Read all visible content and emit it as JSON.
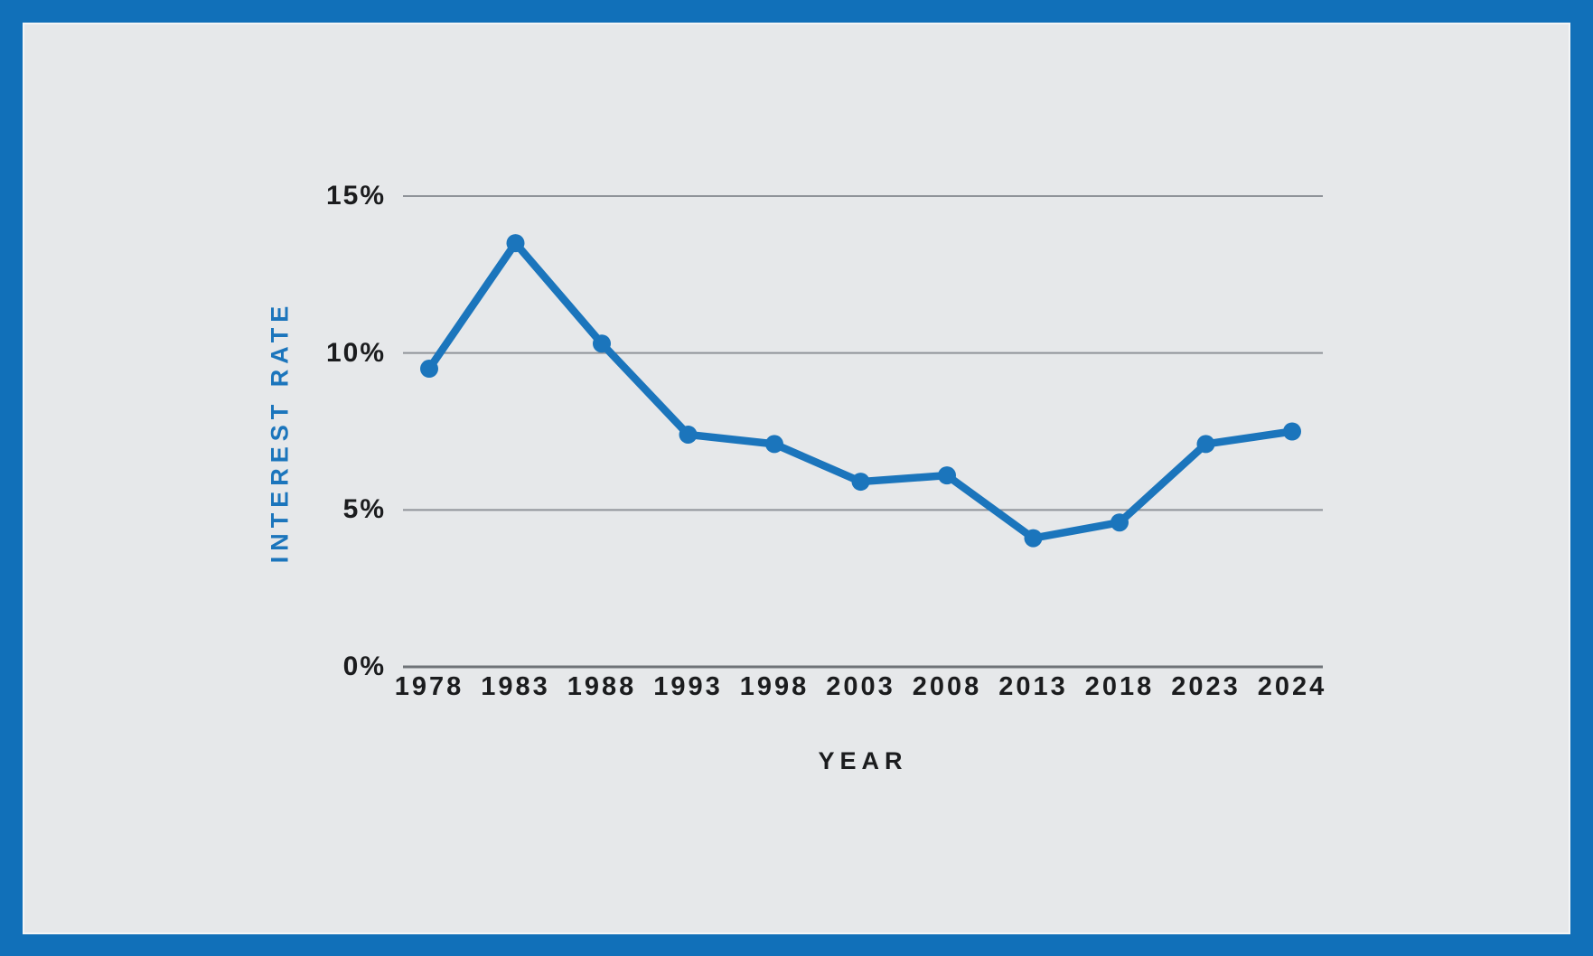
{
  "colors": {
    "frame_blue": "#1170b9",
    "panel_gray": "#e6e8ea",
    "panel_edge": "#f3f5f6",
    "line_blue": "#1b75bc",
    "gridline_gray": "#8f9399",
    "zero_axis_gray": "#6f7378",
    "tick_text": "#1b1c1e",
    "y_axis_title_blue": "#1b75bc"
  },
  "chart_data": {
    "type": "line",
    "title": "",
    "xlabel": "YEAR",
    "ylabel": "INTEREST RATE",
    "categories": [
      "1978",
      "1983",
      "1988",
      "1993",
      "1998",
      "2003",
      "2008",
      "2013",
      "2018",
      "2023",
      "2024"
    ],
    "values": [
      9.5,
      13.5,
      10.3,
      7.4,
      7.1,
      5.9,
      6.1,
      4.1,
      4.6,
      7.1,
      7.5
    ],
    "value_unit": "%",
    "ylim": [
      0,
      15
    ],
    "y_ticks": [
      {
        "value": 15,
        "label": "15%"
      },
      {
        "value": 10,
        "label": "10%"
      },
      {
        "value": 5,
        "label": "5%"
      },
      {
        "value": 0,
        "label": "0%"
      }
    ],
    "grid": true,
    "legend": "none",
    "marker": "circle"
  }
}
